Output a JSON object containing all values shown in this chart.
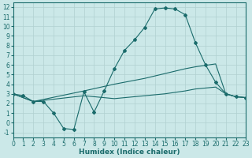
{
  "xlabel": "Humidex (Indice chaleur)",
  "xlim": [
    0,
    23
  ],
  "ylim": [
    -1.5,
    12.5
  ],
  "xticks": [
    0,
    1,
    2,
    3,
    4,
    5,
    6,
    7,
    8,
    9,
    10,
    11,
    12,
    13,
    14,
    15,
    16,
    17,
    18,
    19,
    20,
    21,
    22,
    23
  ],
  "yticks": [
    -1,
    0,
    1,
    2,
    3,
    4,
    5,
    6,
    7,
    8,
    9,
    10,
    11,
    12
  ],
  "bg_color": "#cbe8e8",
  "grid_color": "#b0d0d0",
  "line_color": "#1a6b6b",
  "line1_x": [
    0,
    1,
    2,
    3,
    4,
    5,
    6,
    7,
    8,
    9,
    10,
    11,
    12,
    13,
    14,
    15,
    16,
    17,
    18,
    19,
    20,
    21,
    22,
    23
  ],
  "line1_y": [
    3.0,
    2.8,
    2.2,
    2.2,
    1.0,
    -0.6,
    -0.7,
    3.2,
    1.1,
    3.3,
    5.6,
    7.5,
    8.6,
    9.9,
    11.8,
    11.9,
    11.8,
    11.2,
    8.3,
    6.0,
    4.2,
    3.0,
    2.7,
    2.6
  ],
  "line2_x": [
    0,
    2,
    7,
    10,
    13,
    15,
    17,
    18,
    20,
    21,
    22,
    23
  ],
  "line2_y": [
    3.0,
    2.2,
    3.3,
    4.0,
    4.6,
    5.1,
    5.6,
    5.8,
    6.1,
    3.0,
    2.7,
    2.6
  ],
  "line3_x": [
    0,
    2,
    7,
    10,
    13,
    15,
    17,
    18,
    20,
    21,
    22,
    23
  ],
  "line3_y": [
    3.0,
    2.2,
    2.8,
    2.5,
    2.8,
    3.0,
    3.3,
    3.5,
    3.7,
    3.0,
    2.7,
    2.6
  ],
  "tick_fontsize": 5.5,
  "xlabel_fontsize": 6.5
}
